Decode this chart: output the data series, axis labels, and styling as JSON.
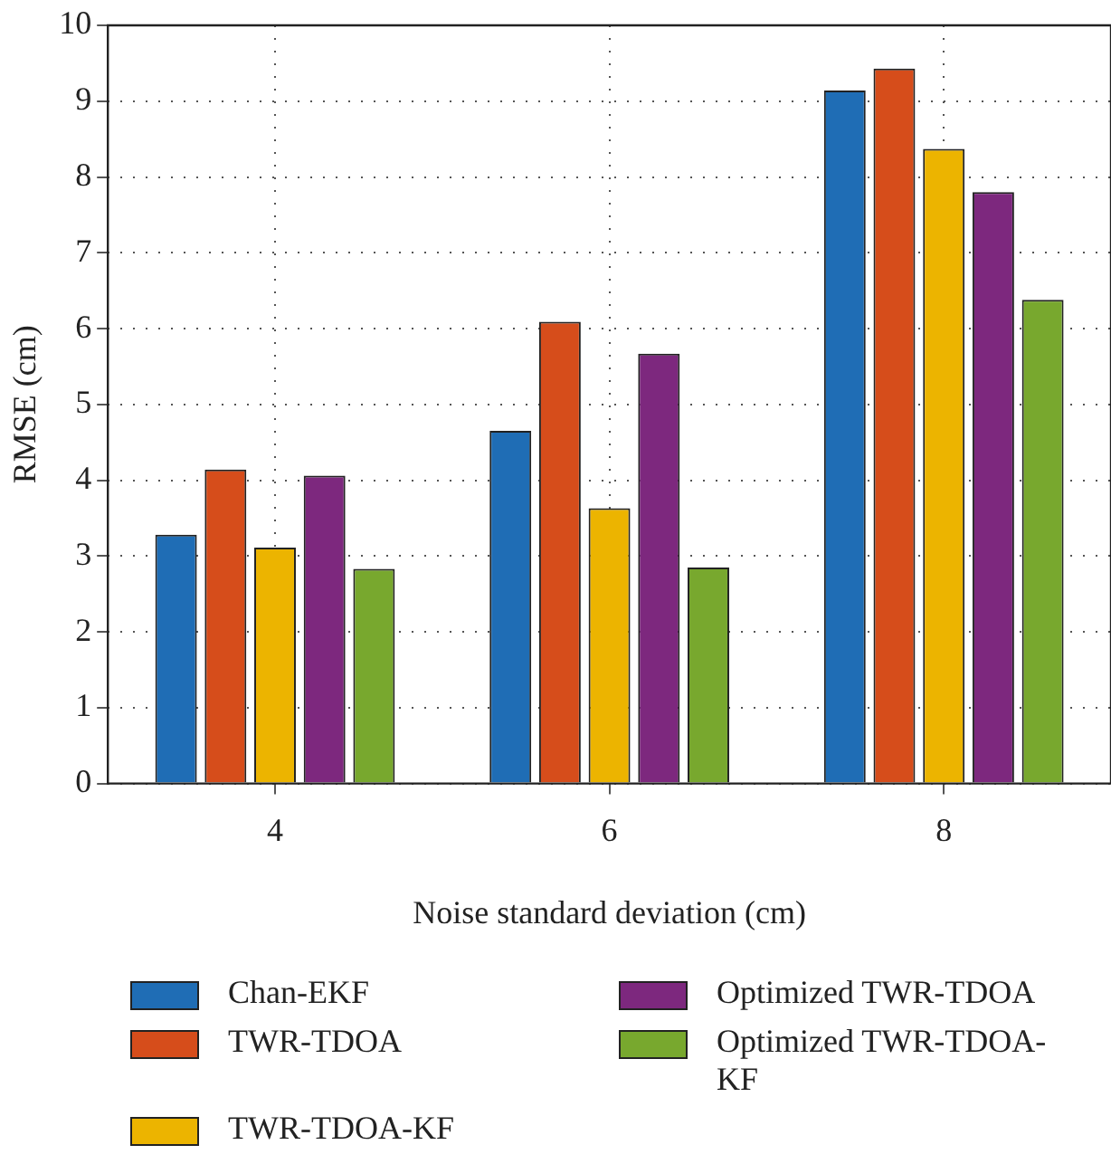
{
  "chart_data": {
    "type": "bar",
    "xlabel": "Noise standard deviation (cm)",
    "ylabel": "RMSE (cm)",
    "categories": [
      "4",
      "6",
      "8"
    ],
    "series": [
      {
        "name": "Chan-EKF",
        "color": "#1f6db5",
        "values": [
          3.28,
          4.65,
          9.14
        ]
      },
      {
        "name": "TWR-TDOA",
        "color": "#d64d1b",
        "values": [
          4.14,
          6.09,
          9.43
        ]
      },
      {
        "name": "TWR-TDOA-KF",
        "color": "#ecb400",
        "values": [
          3.11,
          3.63,
          8.37
        ]
      },
      {
        "name": "Optimized TWR-TDOA",
        "color": "#7d287e",
        "values": [
          4.06,
          5.67,
          7.8
        ]
      },
      {
        "name": "Optimized TWR-TDOA-KF",
        "color": "#78a82e",
        "values": [
          2.83,
          2.85,
          6.38
        ]
      }
    ],
    "ylim": [
      0,
      10
    ],
    "yticks": [
      0,
      1,
      2,
      3,
      4,
      5,
      6,
      7,
      8,
      9,
      10
    ],
    "grid": true,
    "legend": "bottom"
  }
}
